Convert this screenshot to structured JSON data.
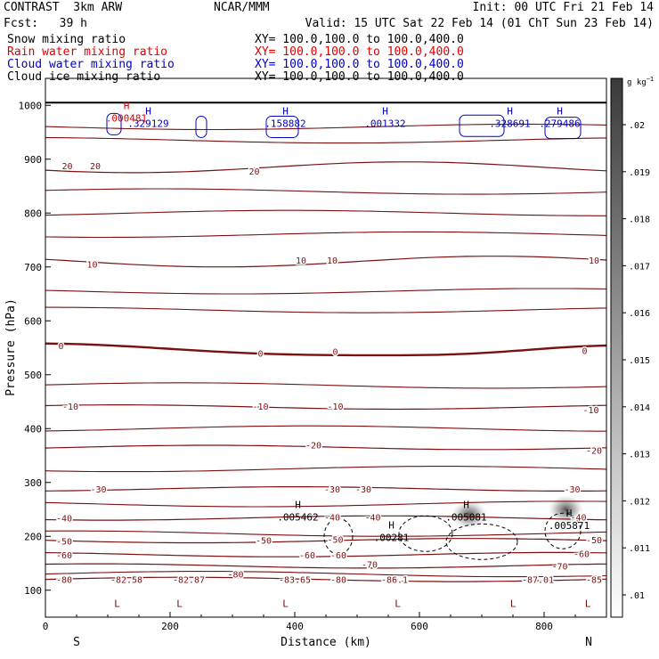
{
  "header": {
    "model": "CONTRAST  3km ARW",
    "org": "NCAR/MMM",
    "init": "Init: 00 UTC Fri 21 Feb 14",
    "fcst": "Fcst:   39 h",
    "valid": "Valid: 15 UTC Sat 22 Feb 14 (01 ChT Sun 23 Feb 14)"
  },
  "fields": [
    {
      "label": "Snow mixing ratio",
      "xy": "XY= 100.0,100.0 to 100.0,400.0",
      "color": "#000000"
    },
    {
      "label": "Rain water mixing ratio",
      "xy": "XY= 100.0,100.0 to 100.0,400.0",
      "color": "#e00000"
    },
    {
      "label": "Cloud water mixing ratio",
      "xy": "XY= 100.0,100.0 to 100.0,400.0",
      "color": "#0000cc"
    },
    {
      "label": "Cloud ice mixing ratio",
      "xy": "XY= 100.0,100.0 to 100.0,400.0",
      "color": "#000000"
    }
  ],
  "chart_data": {
    "type": "heatmap",
    "xlabel": "Distance (km)",
    "ylabel": "Pressure (hPa)",
    "xlim": [
      0,
      900
    ],
    "ylim": [
      1050,
      50
    ],
    "x_ticks": [
      "0",
      "200",
      "400",
      "600",
      "800"
    ],
    "y_ticks": [
      "100",
      "200",
      "300",
      "400",
      "500",
      "600",
      "700",
      "800",
      "900",
      "1000"
    ],
    "direction_left": "S",
    "direction_right": "N",
    "colorbar": {
      "unit": "g kg",
      "unit_sup": "−1",
      "ticks": [
        ".02",
        ".019",
        ".018",
        ".017",
        ".016",
        ".015",
        ".014",
        ".013",
        ".012",
        ".011",
        ".01"
      ]
    },
    "temperature_contours": {
      "color": "#7a1010",
      "levels_c": [
        -80,
        -70,
        -60,
        -50,
        -40,
        -30,
        -20,
        -10,
        0,
        10,
        20
      ],
      "labels": [
        {
          "text": "-80",
          "x": 30,
          "p": 120
        },
        {
          "text": "-82.58",
          "x": 130,
          "p": 120
        },
        {
          "text": "-82.87",
          "x": 230,
          "p": 120
        },
        {
          "text": "-80",
          "x": 305,
          "p": 130
        },
        {
          "text": "-83.65",
          "x": 400,
          "p": 120
        },
        {
          "text": "-80",
          "x": 470,
          "p": 120
        },
        {
          "text": "-86.1",
          "x": 560,
          "p": 120
        },
        {
          "text": "-87.01",
          "x": 790,
          "p": 120
        },
        {
          "text": "-85",
          "x": 880,
          "p": 120
        },
        {
          "text": "-70",
          "x": 520,
          "p": 148
        },
        {
          "text": "-70",
          "x": 825,
          "p": 145
        },
        {
          "text": "-60",
          "x": 30,
          "p": 166
        },
        {
          "text": "-60",
          "x": 420,
          "p": 166
        },
        {
          "text": "-60",
          "x": 470,
          "p": 166
        },
        {
          "text": "-60",
          "x": 860,
          "p": 168
        },
        {
          "text": "-50",
          "x": 30,
          "p": 191
        },
        {
          "text": "-50",
          "x": 350,
          "p": 193
        },
        {
          "text": "-50",
          "x": 465,
          "p": 195
        },
        {
          "text": "-50",
          "x": 880,
          "p": 194
        },
        {
          "text": "-40",
          "x": 30,
          "p": 234
        },
        {
          "text": "-40",
          "x": 460,
          "p": 236
        },
        {
          "text": "-40",
          "x": 525,
          "p": 236
        },
        {
          "text": "-40",
          "x": 855,
          "p": 236
        },
        {
          "text": "-30",
          "x": 85,
          "p": 288
        },
        {
          "text": "-30",
          "x": 460,
          "p": 288
        },
        {
          "text": "-30",
          "x": 510,
          "p": 288
        },
        {
          "text": "-30",
          "x": 845,
          "p": 288
        },
        {
          "text": "-20",
          "x": 430,
          "p": 370
        },
        {
          "text": "-20",
          "x": 880,
          "p": 360
        },
        {
          "text": "-10",
          "x": 40,
          "p": 442
        },
        {
          "text": "-10",
          "x": 345,
          "p": 442
        },
        {
          "text": "-10",
          "x": 465,
          "p": 442
        },
        {
          "text": "-10",
          "x": 875,
          "p": 435
        },
        {
          "text": "0",
          "x": 25,
          "p": 554
        },
        {
          "text": "0",
          "x": 345,
          "p": 540
        },
        {
          "text": "0",
          "x": 465,
          "p": 543
        },
        {
          "text": "0",
          "x": 865,
          "p": 545
        },
        {
          "text": "10",
          "x": 75,
          "p": 705
        },
        {
          "text": "10",
          "x": 410,
          "p": 713
        },
        {
          "text": "10",
          "x": 460,
          "p": 713
        },
        {
          "text": "10",
          "x": 880,
          "p": 713
        },
        {
          "text": "20",
          "x": 35,
          "p": 888
        },
        {
          "text": "20",
          "x": 80,
          "p": 888
        },
        {
          "text": "20",
          "x": 335,
          "p": 878
        }
      ]
    },
    "lows": [
      {
        "label": "L",
        "x": 115,
        "p": 92
      },
      {
        "label": "L",
        "x": 215,
        "p": 92
      },
      {
        "label": "L",
        "x": 385,
        "p": 92
      },
      {
        "label": "L",
        "x": 565,
        "p": 92
      },
      {
        "label": "L",
        "x": 750,
        "p": 92
      },
      {
        "label": "L",
        "x": 870,
        "p": 92
      }
    ],
    "maxima": [
      {
        "label": "H",
        "value": ".005462",
        "x": 405,
        "p": 238,
        "color": "#000000"
      },
      {
        "label": "H",
        "value": ".00281",
        "x": 555,
        "p": 200,
        "color": "#000000"
      },
      {
        "label": "H",
        "value": ".005081",
        "x": 675,
        "p": 238,
        "color": "#000000"
      },
      {
        "label": "H",
        "value": ".005871",
        "x": 840,
        "p": 222,
        "color": "#000000"
      },
      {
        "label": "H",
        "value": ".329129",
        "x": 165,
        "p": 968,
        "color": "#0000cc"
      },
      {
        "label": "H",
        "value": ".158882",
        "x": 385,
        "p": 968,
        "color": "#0000cc"
      },
      {
        "label": "H",
        "value": ".001332",
        "x": 545,
        "p": 968,
        "color": "#0000cc"
      },
      {
        "label": "H",
        "value": ".328691",
        "x": 745,
        "p": 968,
        "color": "#0000cc"
      },
      {
        "label": "H",
        "value": ".279486",
        "x": 825,
        "p": 968,
        "color": "#0000cc"
      },
      {
        "label": "H",
        "value": ".000481",
        "x": 130,
        "p": 978,
        "color": "#e00000"
      }
    ],
    "shaded_cores": [
      {
        "x": 680,
        "p": 240,
        "value": 0.015
      },
      {
        "x": 835,
        "p": 250,
        "value": 0.016
      }
    ]
  }
}
